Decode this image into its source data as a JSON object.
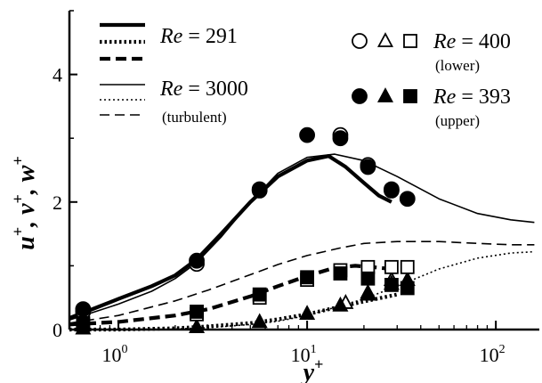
{
  "chart_data": {
    "type": "line",
    "xlabel": "y",
    "xlabel_sup": "+",
    "ylabel_parts": [
      "u",
      "+",
      ", v",
      "+",
      ", w",
      "+"
    ],
    "xscale": "log",
    "xlim": [
      0.55,
      170
    ],
    "ylim": [
      0,
      5
    ],
    "x_ticks": [
      {
        "value": 1,
        "base": "10",
        "exp": "0"
      },
      {
        "value": 10,
        "base": "10",
        "exp": "1"
      },
      {
        "value": 100,
        "base": "10",
        "exp": "2"
      }
    ],
    "y_ticks": [
      {
        "value": 0,
        "label": "0"
      },
      {
        "value": 2,
        "label": "2"
      },
      {
        "value": 4,
        "label": "4"
      }
    ],
    "legend_left": [
      {
        "style": "thick-solid",
        "re_label": "Re",
        "re_value": " = 291",
        "note": ""
      },
      {
        "style": "thick-dotted",
        "re_label": "",
        "re_value": "",
        "note": ""
      },
      {
        "style": "thick-dashed",
        "re_label": "",
        "re_value": "",
        "note": ""
      },
      {
        "style": "thin-solid",
        "re_label": "Re",
        "re_value": " = 3000",
        "note": "(turbulent)"
      },
      {
        "style": "thin-dotted",
        "re_label": "",
        "re_value": "",
        "note": ""
      },
      {
        "style": "thin-dashed",
        "re_label": "",
        "re_value": "",
        "note": ""
      }
    ],
    "legend_right": [
      {
        "markers": "open",
        "re_label": "Re",
        "re_value": " = 400",
        "note": "(lower)"
      },
      {
        "markers": "filled",
        "re_label": "Re",
        "re_value": " = 393",
        "note": "(upper)"
      }
    ],
    "series": [
      {
        "component": "u",
        "case": "Re291",
        "style": "thick-solid",
        "x": [
          0.55,
          0.7,
          1.0,
          1.5,
          2.0,
          2.6,
          3.5,
          5.0,
          7.0,
          10.0,
          13.0,
          16.0,
          20.0,
          24.0,
          28.0
        ],
        "y": [
          0.18,
          0.3,
          0.48,
          0.68,
          0.85,
          1.1,
          1.5,
          2.0,
          2.4,
          2.65,
          2.72,
          2.55,
          2.3,
          2.1,
          2.0
        ]
      },
      {
        "component": "v",
        "case": "Re291",
        "style": "thick-dotted",
        "x": [
          0.55,
          1.0,
          2.0,
          3.0,
          5.0,
          7.0,
          10.0,
          15.0,
          20.0,
          25.0,
          30.0
        ],
        "y": [
          0.0,
          0.0,
          0.02,
          0.05,
          0.1,
          0.16,
          0.24,
          0.36,
          0.44,
          0.5,
          0.55
        ]
      },
      {
        "component": "w",
        "case": "Re291",
        "style": "thick-dashed",
        "x": [
          0.55,
          1.0,
          2.0,
          3.0,
          5.0,
          7.0,
          10.0,
          14.0,
          18.0,
          22.0,
          28.0
        ],
        "y": [
          0.08,
          0.12,
          0.22,
          0.32,
          0.52,
          0.68,
          0.84,
          0.97,
          1.0,
          0.98,
          0.95
        ]
      },
      {
        "component": "u",
        "case": "Re3000",
        "style": "thin-solid",
        "x": [
          0.55,
          0.7,
          1.0,
          1.5,
          2.0,
          2.6,
          3.5,
          5.0,
          7.0,
          10.0,
          14.0,
          20.0,
          30.0,
          50.0,
          80.0,
          120.0,
          160.0
        ],
        "y": [
          0.15,
          0.25,
          0.4,
          0.6,
          0.8,
          1.05,
          1.45,
          2.0,
          2.45,
          2.7,
          2.75,
          2.65,
          2.4,
          2.05,
          1.82,
          1.72,
          1.68
        ]
      },
      {
        "component": "v",
        "case": "Re3000",
        "style": "thin-dotted",
        "x": [
          0.55,
          1.0,
          2.0,
          3.0,
          5.0,
          7.0,
          10.0,
          20.0,
          30.0,
          50.0,
          80.0,
          120.0,
          160.0
        ],
        "y": [
          0.0,
          0.0,
          0.01,
          0.03,
          0.08,
          0.13,
          0.22,
          0.48,
          0.68,
          0.95,
          1.12,
          1.2,
          1.22
        ]
      },
      {
        "component": "w",
        "case": "Re3000",
        "style": "thin-dashed",
        "x": [
          0.55,
          1.0,
          2.0,
          3.0,
          5.0,
          7.0,
          10.0,
          15.0,
          20.0,
          30.0,
          50.0,
          80.0,
          120.0,
          160.0
        ],
        "y": [
          0.1,
          0.22,
          0.45,
          0.62,
          0.86,
          1.02,
          1.16,
          1.28,
          1.35,
          1.38,
          1.38,
          1.35,
          1.33,
          1.33
        ]
      }
    ],
    "markers": [
      {
        "component": "u",
        "case": "Re400-lower",
        "shape": "circle",
        "fill": "open",
        "x": [
          0.65,
          2.6,
          5.6,
          15.0,
          21.0,
          28.0
        ],
        "y": [
          0.28,
          1.03,
          2.2,
          3.05,
          2.58,
          2.2
        ]
      },
      {
        "component": "u",
        "case": "Re393-upper",
        "shape": "circle",
        "fill": "filled",
        "x": [
          0.65,
          2.6,
          5.6,
          10.0,
          15.0,
          21.0,
          28.0,
          34.0
        ],
        "y": [
          0.32,
          1.08,
          2.18,
          3.05,
          3.0,
          2.55,
          2.18,
          2.05
        ]
      },
      {
        "component": "v",
        "case": "Re400-lower",
        "shape": "triangle",
        "fill": "open",
        "x": [
          16.0,
          21.0,
          28.0
        ],
        "y": [
          0.42,
          0.58,
          0.78
        ]
      },
      {
        "component": "v",
        "case": "Re393-upper",
        "shape": "triangle",
        "fill": "filled",
        "x": [
          0.65,
          2.6,
          5.6,
          10.0,
          15.0,
          21.0,
          28.0,
          34.0
        ],
        "y": [
          0.02,
          0.04,
          0.12,
          0.25,
          0.38,
          0.55,
          0.72,
          0.78
        ]
      },
      {
        "component": "w",
        "case": "Re400-lower",
        "shape": "square",
        "fill": "open",
        "x": [
          0.65,
          2.6,
          5.6,
          10.0,
          15.0,
          21.0,
          28.0,
          34.0
        ],
        "y": [
          0.08,
          0.24,
          0.5,
          0.78,
          0.93,
          0.98,
          0.98,
          0.98
        ]
      },
      {
        "component": "w",
        "case": "Re393-upper",
        "shape": "square",
        "fill": "filled",
        "x": [
          0.65,
          2.6,
          5.6,
          10.0,
          15.0,
          21.0,
          28.0,
          34.0
        ],
        "y": [
          0.1,
          0.28,
          0.55,
          0.82,
          0.88,
          0.8,
          0.7,
          0.65
        ]
      }
    ]
  }
}
